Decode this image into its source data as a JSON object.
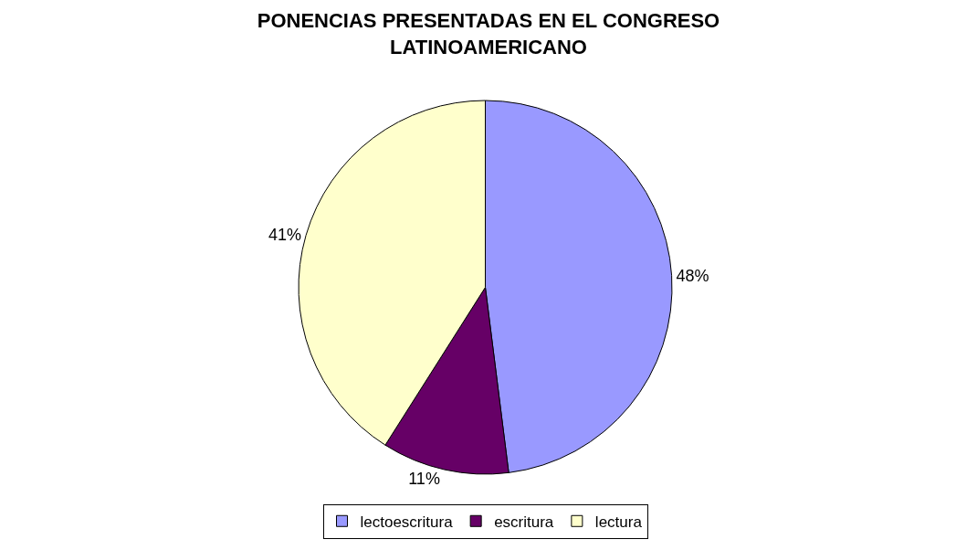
{
  "chart_data": {
    "type": "pie",
    "title": "PONENCIAS PRESENTADAS EN EL CONGRESO LATINOAMERICANO",
    "categories": [
      "lectoescritura",
      "escritura",
      "lectura"
    ],
    "values": [
      48,
      11,
      41
    ],
    "value_labels": [
      "48%",
      "11%",
      "41%"
    ],
    "colors": [
      "#9999ff",
      "#660066",
      "#ffffcc"
    ],
    "legend": "bottom"
  }
}
